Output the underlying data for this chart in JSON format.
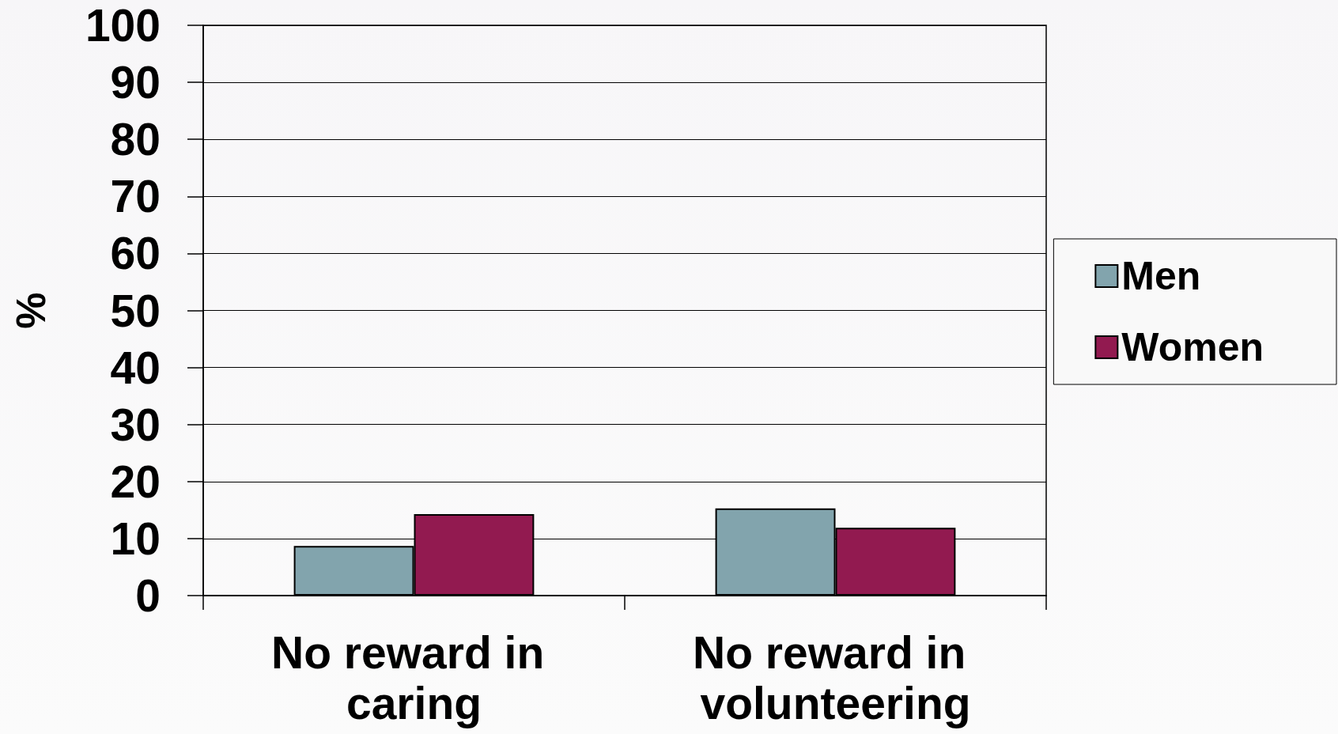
{
  "chart_data": {
    "type": "bar",
    "categories": [
      "No reward in caring",
      "No reward in volunteering"
    ],
    "series": [
      {
        "name": "Men",
        "color": "#82a4ad",
        "values": [
          8.7,
          15.3
        ]
      },
      {
        "name": "Women",
        "color": "#921a50",
        "values": [
          14.3,
          11.9
        ]
      }
    ],
    "ylabel": "%",
    "ylim": [
      0,
      100
    ],
    "yticks": [
      0,
      10,
      20,
      30,
      40,
      50,
      60,
      70,
      80,
      90,
      100
    ],
    "grid": "y",
    "legend": "right"
  }
}
